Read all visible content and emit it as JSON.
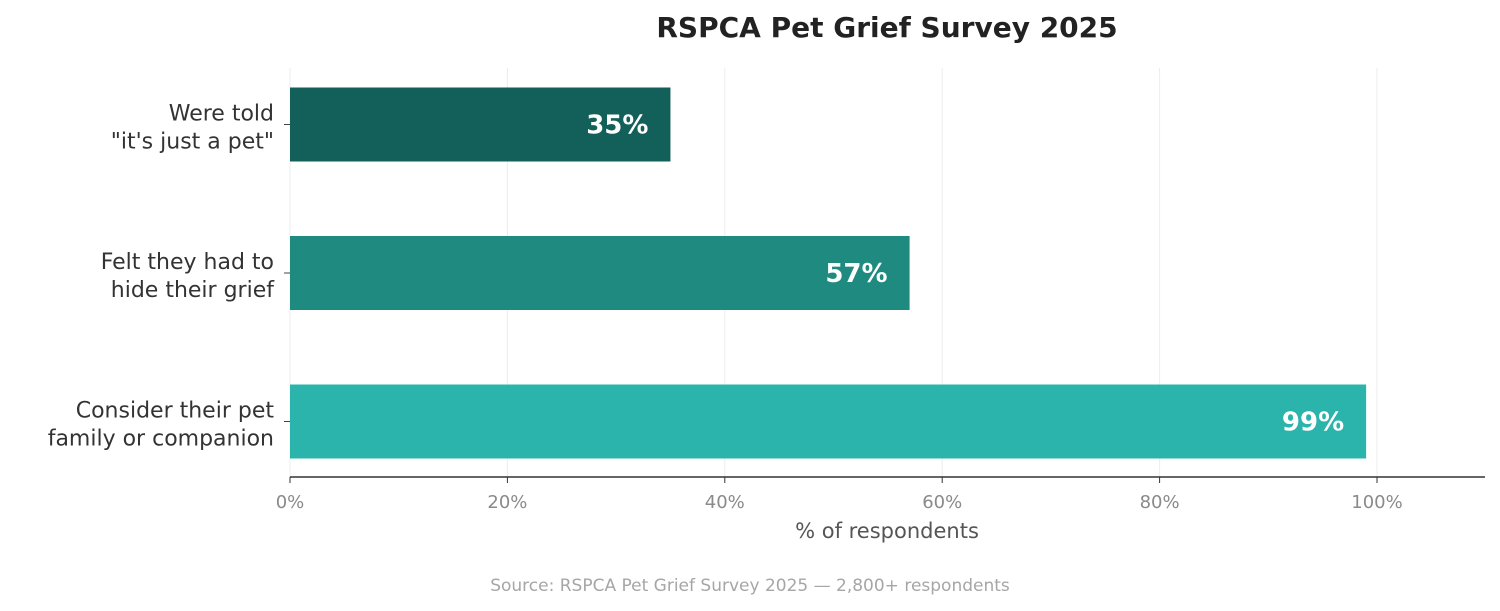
{
  "chart_data": {
    "type": "bar",
    "orientation": "horizontal",
    "title": "RSPCA Pet Grief Survey 2025",
    "categories": [
      [
        "Were told",
        "\"it's just a pet\""
      ],
      [
        "Felt they had to",
        "hide their grief"
      ],
      [
        "Consider their pet",
        "family or companion"
      ]
    ],
    "values": [
      35,
      57,
      99
    ],
    "value_labels": [
      "35%",
      "57%",
      "99%"
    ],
    "colors": [
      "#135f59",
      "#1e8a80",
      "#2ab4ab"
    ],
    "xlabel": "% of respondents",
    "ylabel": "",
    "xlim": [
      0,
      110
    ],
    "xticks": [
      0,
      20,
      40,
      60,
      80,
      100
    ],
    "xtick_labels": [
      "0%",
      "20%",
      "40%",
      "60%",
      "80%",
      "100%"
    ],
    "grid": "vertical",
    "source": "Source: RSPCA Pet Grief Survey 2025 — 2,800+ respondents"
  }
}
